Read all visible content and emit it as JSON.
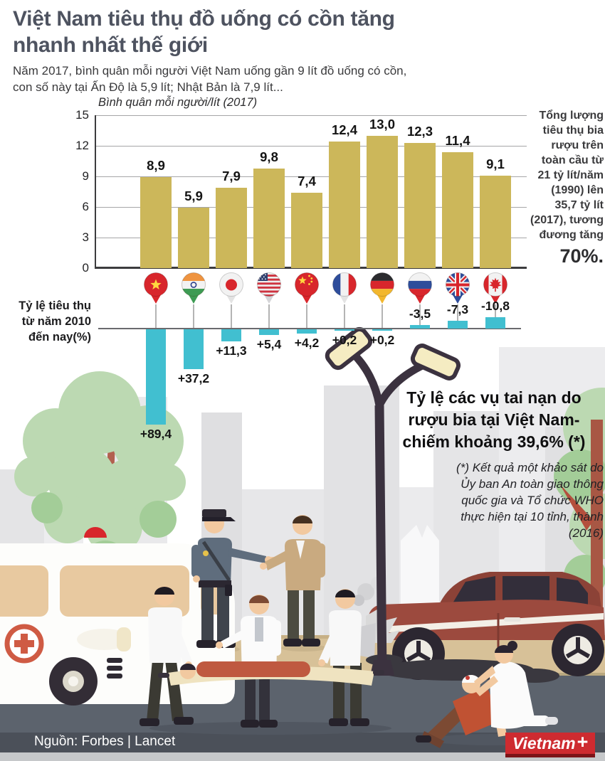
{
  "header": {
    "title_lines": [
      "Việt Nam tiêu thụ đồ uống có cồn tăng",
      "nhanh nhất thế giới"
    ],
    "subtitle_lines": [
      "Năm 2017, bình quân mỗi người Việt Nam uống gần 9 lít đồ uống có cồn,",
      "con số này tại Ấn Độ là 5,9 lít; Nhật Bản là 7,9 lít..."
    ]
  },
  "chart_data": [
    {
      "type": "bar",
      "title": "Bình quân mỗi người/lít  (2017)",
      "categories": [
        "Việt Nam",
        "Ấn Độ",
        "Nhật Bản",
        "Mỹ",
        "Trung Quốc",
        "Pháp",
        "Đức",
        "Nga",
        "Anh",
        "Canada"
      ],
      "flag_icons": [
        "vietnam-flag-icon",
        "india-flag-icon",
        "japan-flag-icon",
        "usa-flag-icon",
        "china-flag-icon",
        "france-flag-icon",
        "germany-flag-icon",
        "russia-flag-icon",
        "uk-flag-icon",
        "canada-flag-icon"
      ],
      "values": [
        8.9,
        5.9,
        7.9,
        9.8,
        7.4,
        12.4,
        13.0,
        12.3,
        11.4,
        9.1
      ],
      "value_labels": [
        "8,9",
        "5,9",
        "7,9",
        "9,8",
        "7,4",
        "12,4",
        "13,0",
        "12,3",
        "11,4",
        "9,1"
      ],
      "ylim": [
        0,
        15
      ],
      "yticks": [
        0,
        3,
        6,
        9,
        12,
        15
      ],
      "grid": true,
      "legend_position": "none",
      "bar_color": "#ccb75a"
    },
    {
      "type": "bar",
      "title": "Tỷ lệ tiêu thụ từ năm 2010 đến nay(%)",
      "categories": [
        "Việt Nam",
        "Ấn Độ",
        "Nhật Bản",
        "Mỹ",
        "Trung Quốc",
        "Pháp",
        "Đức",
        "Nga",
        "Anh",
        "Canada"
      ],
      "values": [
        89.4,
        37.2,
        11.3,
        5.4,
        4.2,
        0.2,
        0.2,
        -3.5,
        -7.3,
        -10.8
      ],
      "value_labels": [
        "+89,4",
        "+37,2",
        "+11,3",
        "+5,4",
        "+4,2",
        "+0,2",
        "+0,2",
        "-3,5",
        "-7,3",
        "-10,8"
      ],
      "orientation": "positive-drawn-downward",
      "grid": false,
      "bar_color": "#41bfd0"
    }
  ],
  "global_note": {
    "lines": [
      "Tổng lượng",
      "tiêu thụ bia",
      "rượu trên",
      "toàn cầu từ",
      "21 tỷ lít/năm",
      "(1990) lên",
      "35,7 tỷ lít",
      "(2017), tương",
      "đương tăng"
    ],
    "highlight": "70%."
  },
  "accident_note": {
    "title_lines": [
      "Tỷ lệ các vụ tai nạn do",
      "rượu bia tại Việt Nam-",
      "chiếm khoảng 39,6% (*)"
    ],
    "footnote_lines": [
      "(*) Kết quả một khảo sát do",
      "Ủy ban An toàn giao thông",
      "quốc gia và Tổ chức WHO",
      "thực hiện tại 10 tỉnh, thành",
      "(2016)"
    ]
  },
  "footer": {
    "source_label": "Nguồn: Forbes | Lancet",
    "logo_text": "Vietnam",
    "logo_plus": "+"
  },
  "colors": {
    "title": "#4e5360",
    "gold_bar": "#ccb75a",
    "cyan_bar": "#41bfd0",
    "logo_red": "#ce2b30",
    "road": "#5c636d",
    "sidewalk": "#d7c198",
    "accent_red": "#d8262c"
  }
}
